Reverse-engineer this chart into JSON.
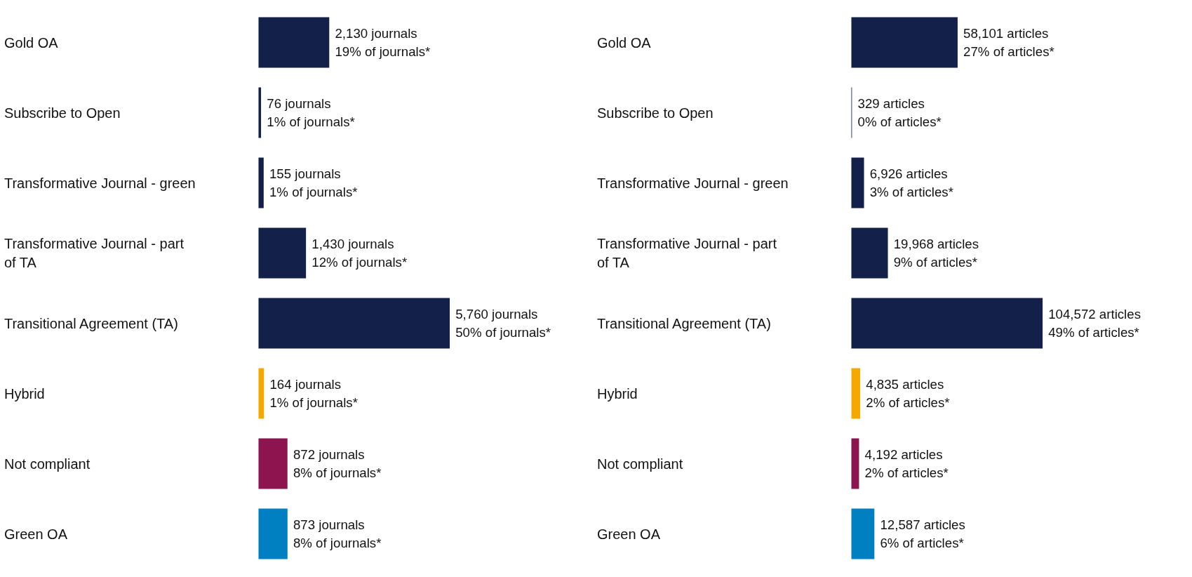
{
  "chart_data": [
    {
      "type": "bar",
      "orientation": "horizontal",
      "tick_labels": false,
      "grid": false,
      "categories": [
        "Gold OA",
        "Subscribe to Open",
        "Transformative Journal - green",
        "Transformative Journal - part of TA",
        "Transitional Agreement (TA)",
        "Hybrid",
        "Not compliant",
        "Green OA"
      ],
      "values": [
        2130,
        76,
        155,
        1430,
        5760,
        164,
        872,
        873
      ],
      "colors": [
        "#13214a",
        "#13214a",
        "#13214a",
        "#13214a",
        "#13214a",
        "#f5a800",
        "#8c1550",
        "#0080c0"
      ],
      "value_labels": [
        "2,130 journals\n19% of journals*",
        "76 journals\n1% of journals*",
        "155 journals\n1% of journals*",
        "1,430 journals\n12% of journals*",
        "5,760 journals\n50% of journals*",
        "164 journals\n1% of journals*",
        "872 journals\n8% of journals*",
        "873 journals\n8% of journals*"
      ]
    },
    {
      "type": "bar",
      "orientation": "horizontal",
      "tick_labels": false,
      "grid": false,
      "categories": [
        "Gold OA",
        "Subscribe to Open",
        "Transformative Journal - green",
        "Transformative Journal - part of TA",
        "Transitional Agreement (TA)",
        "Hybrid",
        "Not compliant",
        "Green OA"
      ],
      "values": [
        58101,
        329,
        6926,
        19968,
        104572,
        4835,
        4192,
        12587
      ],
      "colors": [
        "#13214a",
        "#13214a",
        "#13214a",
        "#13214a",
        "#13214a",
        "#f5a800",
        "#8c1550",
        "#0080c0"
      ],
      "value_labels": [
        "58,101 articles\n27% of articles*",
        "329 articles\n0% of articles*",
        "6,926 articles\n3% of articles*",
        "19,968 articles\n9% of articles*",
        "104,572 articles\n49% of articles*",
        "4,835 articles\n2% of articles*",
        "4,192 articles\n2% of articles*",
        "12,587 articles\n6% of articles*"
      ]
    }
  ]
}
